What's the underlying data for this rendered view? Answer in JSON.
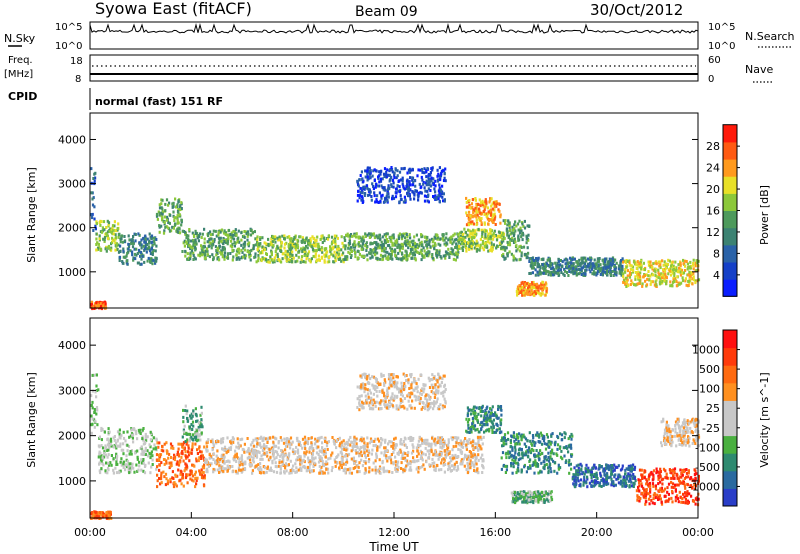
{
  "header": {
    "station": "Syowa East (fitACF)",
    "beam": "Beam 09",
    "date": "30/Oct/2012"
  },
  "top_panels": {
    "nsky": {
      "label": "N.Sky",
      "ytick_top": "10^5",
      "ytick_bottom": "10^0",
      "right_label": "N.Search",
      "right_tick_top": "10^5",
      "right_tick_bottom": "10^0"
    },
    "freq": {
      "label_line1": "Freq.",
      "label_line2": "[MHz]",
      "ytick_top": "18",
      "ytick_bottom": "8",
      "right_label": "Nave",
      "right_tick_top": "60",
      "right_tick_bottom": "0"
    },
    "cpid": {
      "label": "CPID",
      "mode_text": "normal (fast) 151 RF"
    }
  },
  "chart_data": [
    {
      "type": "heatmap",
      "panel": "power",
      "xlabel": "",
      "ylabel": "Slant Range [km]",
      "xlim": [
        0,
        24
      ],
      "ylim": [
        180,
        4600
      ],
      "yticks": [
        "1000",
        "2000",
        "3000",
        "4000"
      ],
      "colorbar": {
        "label": "Power [dB]",
        "ticks": [
          "4",
          "8",
          "12",
          "16",
          "20",
          "24",
          "28"
        ],
        "colors": [
          "#0a1eff",
          "#1540c8",
          "#2a62a8",
          "#3c8272",
          "#4e9a5c",
          "#8cc83a",
          "#e8e028",
          "#ff9a1e",
          "#ff5a12",
          "#ff1a0a"
        ]
      },
      "bands": [
        {
          "t0": 0.0,
          "t1": 0.2,
          "r0": 1900,
          "r1": 3400,
          "level": 2
        },
        {
          "t0": 0.2,
          "t1": 1.1,
          "r0": 1500,
          "r1": 2200,
          "level": 5
        },
        {
          "t0": 1.1,
          "t1": 2.6,
          "r0": 1200,
          "r1": 1900,
          "level": 3
        },
        {
          "t0": 2.6,
          "t1": 3.6,
          "r0": 1900,
          "r1": 2700,
          "level": 4
        },
        {
          "t0": 3.6,
          "t1": 6.5,
          "r0": 1300,
          "r1": 2000,
          "level": 4
        },
        {
          "t0": 6.5,
          "t1": 10.0,
          "r0": 1250,
          "r1": 1850,
          "level": 5
        },
        {
          "t0": 10.0,
          "t1": 14.5,
          "r0": 1300,
          "r1": 1900,
          "level": 4
        },
        {
          "t0": 14.5,
          "t1": 16.3,
          "r0": 1500,
          "r1": 2000,
          "level": 5
        },
        {
          "t0": 14.8,
          "t1": 16.2,
          "r0": 2100,
          "r1": 2700,
          "level": 7
        },
        {
          "t0": 16.2,
          "t1": 17.3,
          "r0": 1300,
          "r1": 2200,
          "level": 4
        },
        {
          "t0": 17.3,
          "t1": 21.0,
          "r0": 950,
          "r1": 1350,
          "level": 3
        },
        {
          "t0": 21.0,
          "t1": 24.0,
          "r0": 700,
          "r1": 1300,
          "level": 6
        },
        {
          "t0": 0.0,
          "t1": 0.6,
          "r0": 200,
          "r1": 350,
          "level": 8
        },
        {
          "t0": 16.8,
          "t1": 18.0,
          "r0": 500,
          "r1": 800,
          "level": 7
        },
        {
          "t0": 10.5,
          "t1": 14.0,
          "r0": 2600,
          "r1": 3400,
          "level": 1
        }
      ]
    },
    {
      "type": "heatmap",
      "panel": "velocity",
      "xlabel": "Time UT",
      "ylabel": "Slant Range [km]",
      "xlim": [
        0,
        24
      ],
      "ylim": [
        180,
        4600
      ],
      "xticks": [
        "00:00",
        "04:00",
        "08:00",
        "12:00",
        "16:00",
        "20:00",
        "00:00"
      ],
      "yticks": [
        "1000",
        "2000",
        "3000",
        "4000"
      ],
      "colorbar": {
        "label": "Velocity [m s^-1]",
        "ticks": [
          "1000",
          "500",
          "100",
          "25",
          "-25",
          "-100",
          "-500",
          "-1000"
        ],
        "colors": [
          "#2a3ec8",
          "#2a6aa0",
          "#2e8a70",
          "#4ab040",
          "#c8c8c8",
          "#c8c8c8",
          "#ff9020",
          "#ff6a10",
          "#ff3a0a",
          "#ff1010"
        ]
      },
      "bands": [
        {
          "t0": 0.0,
          "t1": 0.3,
          "r0": 1900,
          "r1": 3400,
          "level": 4
        },
        {
          "t0": 0.3,
          "t1": 2.6,
          "r0": 1200,
          "r1": 2200,
          "level": 4
        },
        {
          "t0": 2.6,
          "t1": 4.5,
          "r0": 900,
          "r1": 1900,
          "level": 7
        },
        {
          "t0": 3.6,
          "t1": 4.4,
          "r0": 1900,
          "r1": 2700,
          "level": 3
        },
        {
          "t0": 4.5,
          "t1": 15.5,
          "r0": 1200,
          "r1": 2000,
          "level": 5
        },
        {
          "t0": 14.8,
          "t1": 16.2,
          "r0": 2100,
          "r1": 2700,
          "level": 2
        },
        {
          "t0": 16.2,
          "t1": 19.0,
          "r0": 1200,
          "r1": 2100,
          "level": 2
        },
        {
          "t0": 19.0,
          "t1": 21.5,
          "r0": 900,
          "r1": 1400,
          "level": 1
        },
        {
          "t0": 21.5,
          "t1": 24.0,
          "r0": 500,
          "r1": 1300,
          "level": 8
        },
        {
          "t0": 0.0,
          "t1": 0.8,
          "r0": 200,
          "r1": 350,
          "level": 7
        },
        {
          "t0": 16.6,
          "t1": 18.2,
          "r0": 550,
          "r1": 800,
          "level": 3
        },
        {
          "t0": 10.5,
          "t1": 14.0,
          "r0": 2600,
          "r1": 3400,
          "level": 5
        },
        {
          "t0": 22.5,
          "t1": 24.0,
          "r0": 1800,
          "r1": 2400,
          "level": 5
        }
      ]
    }
  ]
}
